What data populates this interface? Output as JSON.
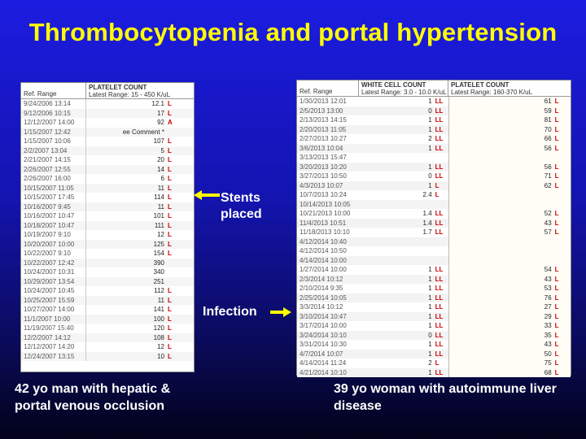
{
  "slide": {
    "title": "Thrombocytopenia and portal hypertension",
    "annotations": {
      "stents": "Stents\nplaced",
      "infection": "Infection"
    },
    "captions": {
      "left": "42 yo man with hepatic & portal venous occlusion",
      "right": "39 yo woman with autoimmune liver disease"
    },
    "colors": {
      "title": "#ffff00",
      "text": "#ffffff",
      "flag": "#d00000",
      "arrow": "#ffff00"
    }
  },
  "left_panel": {
    "col_ref": "Ref. Range",
    "col_title": "PLATELET COUNT",
    "col_range": "Latest Range: 15 - 450 K/uL",
    "rows": [
      {
        "date": "9/24/2006 13:14",
        "value": "12.1",
        "flag": "L"
      },
      {
        "date": "9/12/2006 10:15",
        "value": "17",
        "flag": "L"
      },
      {
        "date": "12/12/2007 14:00",
        "value": "92",
        "flag": "A"
      },
      {
        "date": "1/15/2007 12:42",
        "value": "ee Comment *",
        "flag": ""
      },
      {
        "date": "1/15/2007 10:06",
        "value": "107",
        "flag": "L"
      },
      {
        "date": "2/2/2007 13:04",
        "value": "5",
        "flag": "L"
      },
      {
        "date": "2/21/2007 14:15",
        "value": "20",
        "flag": "L"
      },
      {
        "date": "2/26/2007 12:55",
        "value": "14",
        "flag": "L"
      },
      {
        "date": "2/26/2007 16:00",
        "value": "6",
        "flag": "L"
      },
      {
        "date": "10/15/2007 11:05",
        "value": "11",
        "flag": "L"
      },
      {
        "date": "10/15/2007 17:45",
        "value": "114",
        "flag": "L"
      },
      {
        "date": "10/16/2007 9:45",
        "value": "11",
        "flag": "L"
      },
      {
        "date": "10/16/2007 10:47",
        "value": "101",
        "flag": "L"
      },
      {
        "date": "10/18/2007 10:47",
        "value": "111",
        "flag": "L"
      },
      {
        "date": "10/19/2007 9:10",
        "value": "12",
        "flag": "L"
      },
      {
        "date": "10/20/2007 10:00",
        "value": "125",
        "flag": "L"
      },
      {
        "date": "10/22/2007 9:10",
        "value": "154",
        "flag": "L"
      },
      {
        "date": "10/22/2007 12:42",
        "value": "390",
        "flag": ""
      },
      {
        "date": "10/24/2007 10:31",
        "value": "340",
        "flag": ""
      },
      {
        "date": "10/29/2007 13:54",
        "value": "251",
        "flag": ""
      },
      {
        "date": "10/24/2007 10:45",
        "value": "112",
        "flag": "L"
      },
      {
        "date": "10/25/2007 15:59",
        "value": "11",
        "flag": "L"
      },
      {
        "date": "10/27/2007 14:00",
        "value": "141",
        "flag": "L"
      },
      {
        "date": "11/1/2007 10:00",
        "value": "100",
        "flag": "L"
      },
      {
        "date": "11/19/2007 15:40",
        "value": "120",
        "flag": "L"
      },
      {
        "date": "12/2/2007 14:12",
        "value": "108",
        "flag": "L"
      },
      {
        "date": "12/12/2007 14:20",
        "value": "12",
        "flag": "L"
      },
      {
        "date": "12/24/2007 13:15",
        "value": "10",
        "flag": "L"
      }
    ]
  },
  "right_panel": {
    "col_ref": "Ref. Range",
    "col_wbc_title": "WHITE CELL COUNT",
    "col_wbc_range": "Latest Range: 3.0 - 10.0 K/uL",
    "col_plt_title": "PLATELET COUNT",
    "col_plt_range": "Latest Range: 160-370 K/uL",
    "rows": [
      {
        "date": "1/30/2013 12:01",
        "wbc": "1",
        "wbc_flag": "LL",
        "plt": "61",
        "plt_flag": "L"
      },
      {
        "date": "2/5/2013 13:00",
        "wbc": "0",
        "wbc_flag": "LL",
        "plt": "59",
        "plt_flag": "L"
      },
      {
        "date": "2/13/2013 14:15",
        "wbc": "1",
        "wbc_flag": "LL",
        "plt": "81",
        "plt_flag": "L"
      },
      {
        "date": "2/20/2013 11:05",
        "wbc": "1",
        "wbc_flag": "LL",
        "plt": "70",
        "plt_flag": "L"
      },
      {
        "date": "2/27/2013 10:27",
        "wbc": "2",
        "wbc_flag": "LL",
        "plt": "66",
        "plt_flag": "L"
      },
      {
        "date": "3/6/2013 10:04",
        "wbc": "1",
        "wbc_flag": "LL",
        "plt": "56",
        "plt_flag": "L"
      },
      {
        "date": "3/13/2013 15:47",
        "wbc": "",
        "wbc_flag": "",
        "plt": "",
        "plt_flag": ""
      },
      {
        "date": "3/20/2013 10:20",
        "wbc": "1",
        "wbc_flag": "LL",
        "plt": "56",
        "plt_flag": "L"
      },
      {
        "date": "3/27/2013 10:50",
        "wbc": "0",
        "wbc_flag": "LL",
        "plt": "71",
        "plt_flag": "L"
      },
      {
        "date": "4/3/2013 10:07",
        "wbc": "1",
        "wbc_flag": "L",
        "plt": "62",
        "plt_flag": "L"
      },
      {
        "date": "10/7/2013 10:24",
        "wbc": "2.4",
        "wbc_flag": "L",
        "plt": "",
        "plt_flag": ""
      },
      {
        "date": "10/14/2013 10:05",
        "wbc": "",
        "wbc_flag": "",
        "plt": "",
        "plt_flag": ""
      },
      {
        "date": "10/21/2013 10:00",
        "wbc": "1.4",
        "wbc_flag": "LL",
        "plt": "52",
        "plt_flag": "L"
      },
      {
        "date": "11/4/2013 10:51",
        "wbc": "1.4",
        "wbc_flag": "LL",
        "plt": "43",
        "plt_flag": "L"
      },
      {
        "date": "11/18/2013 10:10",
        "wbc": "1.7",
        "wbc_flag": "LL",
        "plt": "57",
        "plt_flag": "L"
      },
      {
        "date": "4/12/2014 10:40",
        "wbc": "",
        "wbc_flag": "",
        "plt": "",
        "plt_flag": ""
      },
      {
        "date": "4/12/2014 10:50",
        "wbc": "",
        "wbc_flag": "",
        "plt": "",
        "plt_flag": ""
      },
      {
        "date": "4/14/2014 10:00",
        "wbc": "",
        "wbc_flag": "",
        "plt": "",
        "plt_flag": ""
      },
      {
        "date": "1/27/2014 10:00",
        "wbc": "1",
        "wbc_flag": "LL",
        "plt": "54",
        "plt_flag": "L"
      },
      {
        "date": "2/3/2014 10:12",
        "wbc": "1",
        "wbc_flag": "LL",
        "plt": "43",
        "plt_flag": "L"
      },
      {
        "date": "2/10/2014 9:35",
        "wbc": "1",
        "wbc_flag": "LL",
        "plt": "53",
        "plt_flag": "L"
      },
      {
        "date": "2/25/2014 10:05",
        "wbc": "1",
        "wbc_flag": "LL",
        "plt": "76",
        "plt_flag": "L"
      },
      {
        "date": "3/3/2014 10:12",
        "wbc": "1",
        "wbc_flag": "LL",
        "plt": "27",
        "plt_flag": "L"
      },
      {
        "date": "3/10/2014 10:47",
        "wbc": "1",
        "wbc_flag": "LL",
        "plt": "29",
        "plt_flag": "L"
      },
      {
        "date": "3/17/2014 10:00",
        "wbc": "1",
        "wbc_flag": "LL",
        "plt": "33",
        "plt_flag": "L"
      },
      {
        "date": "3/24/2014 10:10",
        "wbc": "0",
        "wbc_flag": "LL",
        "plt": "35",
        "plt_flag": "L"
      },
      {
        "date": "3/31/2014 10:30",
        "wbc": "1",
        "wbc_flag": "LL",
        "plt": "43",
        "plt_flag": "L"
      },
      {
        "date": "4/7/2014 10:07",
        "wbc": "1",
        "wbc_flag": "LL",
        "plt": "50",
        "plt_flag": "L"
      },
      {
        "date": "4/14/2014 11:24",
        "wbc": "2",
        "wbc_flag": "L",
        "plt": "75",
        "plt_flag": "L"
      },
      {
        "date": "4/21/2014 10:10",
        "wbc": "1",
        "wbc_flag": "LL",
        "plt": "68",
        "plt_flag": "L"
      }
    ]
  }
}
